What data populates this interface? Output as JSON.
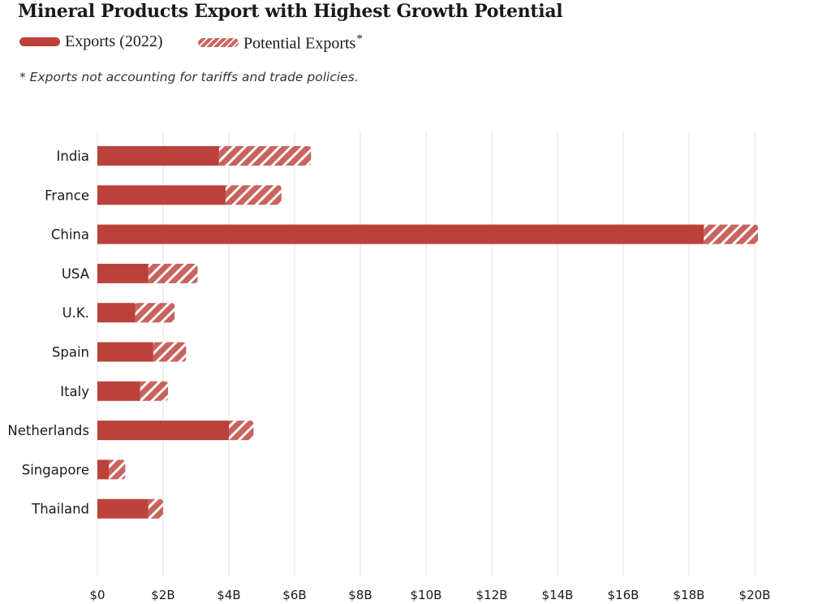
{
  "chart_data": {
    "type": "bar",
    "orientation": "horizontal",
    "stacked": true,
    "title": "Mineral Products Export with Highest Growth Potential",
    "note": "* Exports not accounting for tariffs and trade policies.",
    "categories": [
      "India",
      "France",
      "China",
      "USA",
      "U.K.",
      "Spain",
      "Italy",
      "Netherlands",
      "Singapore",
      "Thailand"
    ],
    "series": [
      {
        "name": "Exports (2022)",
        "values": [
          3.7,
          3.9,
          18.45,
          1.55,
          1.15,
          1.7,
          1.3,
          4.0,
          0.35,
          1.55
        ]
      },
      {
        "name": "Potential Exports",
        "values": [
          2.8,
          1.7,
          1.65,
          1.5,
          1.2,
          1.0,
          0.85,
          0.75,
          0.5,
          0.45
        ]
      }
    ],
    "legend": {
      "exports_label": "Exports (2022)",
      "potential_label": "Potential Exports",
      "potential_marker": "*"
    },
    "xlim": [
      0,
      20
    ],
    "x_ticks": [
      0,
      2,
      4,
      6,
      8,
      10,
      12,
      14,
      16,
      18,
      20
    ],
    "x_tick_labels": [
      "$0",
      "$2B",
      "$4B",
      "$6B",
      "$8B",
      "$10B",
      "$12B",
      "$14B",
      "$16B",
      "$18B",
      "$20B"
    ],
    "grid": true,
    "colors": {
      "bar": "#bc413b",
      "hatch_line": "#ffffff",
      "grid": "#e3e3e3",
      "text": "#1a1a1a"
    }
  }
}
